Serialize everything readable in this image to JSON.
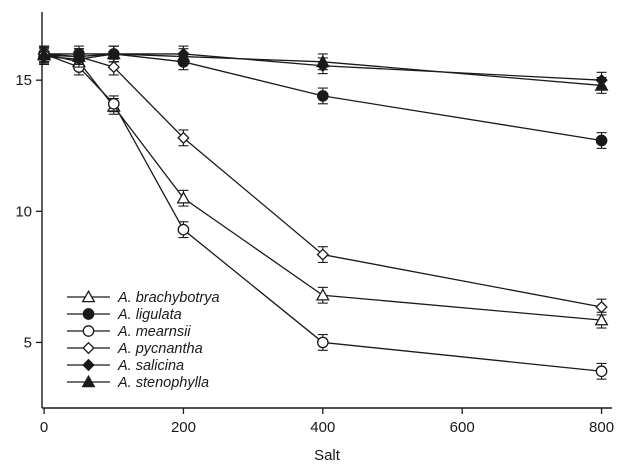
{
  "chart_data": {
    "type": "line",
    "title": "",
    "xlabel": "Salt",
    "ylabel": "",
    "x": [
      0,
      50,
      100,
      200,
      400,
      800
    ],
    "xticks": [
      0,
      200,
      400,
      600,
      800
    ],
    "yticks": [
      5,
      10,
      15
    ],
    "xlim": [
      -3,
      815
    ],
    "ylim": [
      2.5,
      17.6
    ],
    "grid": false,
    "legend_position": "lower-left",
    "series": [
      {
        "name": "A. brachybotrya",
        "marker": "open-triangle",
        "values": [
          16.0,
          15.7,
          14.0,
          10.5,
          6.8,
          5.85
        ],
        "errors": [
          0.3,
          0.3,
          0.3,
          0.3,
          0.3,
          0.3
        ]
      },
      {
        "name": "A. ligulata",
        "marker": "filled-circle",
        "values": [
          16.0,
          16.0,
          16.0,
          15.7,
          14.4,
          12.7
        ],
        "errors": [
          0.3,
          0.3,
          0.3,
          0.3,
          0.3,
          0.3
        ]
      },
      {
        "name": "A. mearnsii",
        "marker": "open-circle",
        "values": [
          16.0,
          15.5,
          14.1,
          9.3,
          5.0,
          3.9
        ],
        "errors": [
          0.3,
          0.3,
          0.3,
          0.3,
          0.3,
          0.3
        ]
      },
      {
        "name": "A. pycnantha",
        "marker": "open-diamond",
        "values": [
          16.0,
          15.9,
          15.5,
          12.8,
          8.35,
          6.35
        ],
        "errors": [
          0.3,
          0.3,
          0.3,
          0.3,
          0.3,
          0.3
        ]
      },
      {
        "name": "A. salicina",
        "marker": "filled-diamond",
        "values": [
          15.9,
          15.8,
          16.0,
          16.0,
          15.55,
          15.0
        ],
        "errors": [
          0.3,
          0.3,
          0.3,
          0.3,
          0.3,
          0.3
        ]
      },
      {
        "name": "A. stenophylla",
        "marker": "filled-triangle",
        "values": [
          15.95,
          15.9,
          16.0,
          15.9,
          15.7,
          14.8
        ],
        "errors": [
          0.3,
          0.3,
          0.3,
          0.3,
          0.3,
          0.3
        ]
      }
    ]
  }
}
